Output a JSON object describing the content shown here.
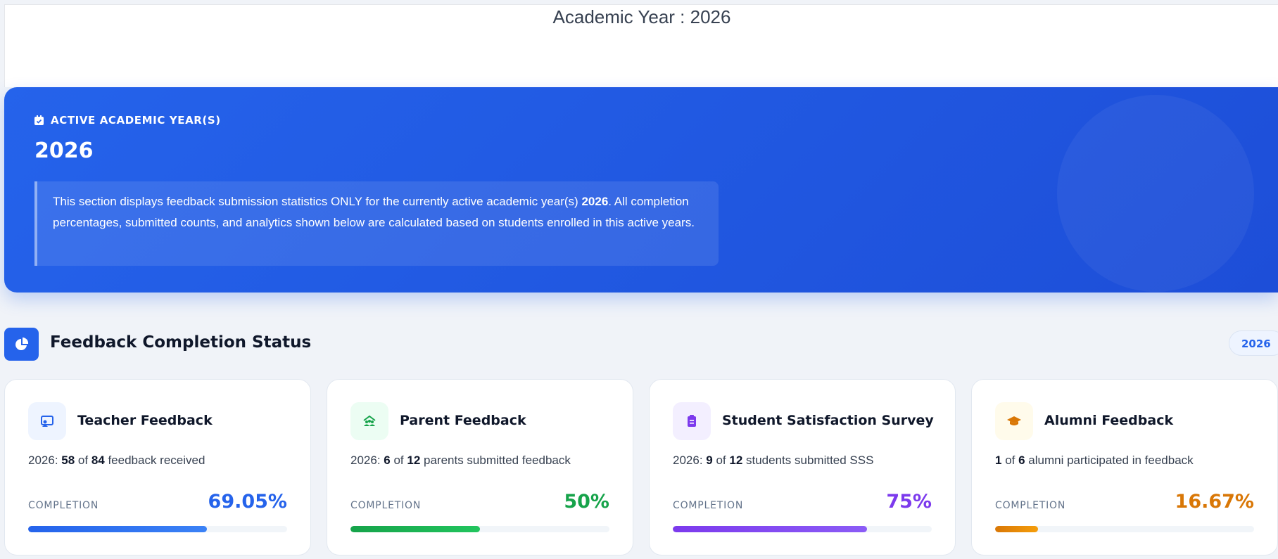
{
  "header": {
    "title": "Academic Year : 2026"
  },
  "banner": {
    "label": "ACTIVE ACADEMIC YEAR(S)",
    "year": "2026",
    "description": [
      {
        "text": "This section displays feedback submission statistics ONLY for the currently active academic year(s) "
      },
      {
        "text": "2026",
        "bold": true
      },
      {
        "text": ". All completion percentages, submitted counts, and analytics shown below are calculated based on students enrolled in this active years."
      }
    ]
  },
  "section": {
    "title": "Feedback Completion Status",
    "badge": "2026"
  },
  "cards": [
    {
      "title": "Teacher Feedback",
      "color": "#2563eb",
      "icon_bg": "#eef4ff",
      "bar": [
        "#2563eb",
        "#3b82f6"
      ],
      "stat": [
        {
          "text": "2026: "
        },
        {
          "text": "58",
          "bold": true
        },
        {
          "text": " of "
        },
        {
          "text": "84",
          "bold": true
        },
        {
          "text": " feedback received"
        }
      ],
      "completion_label": "COMPLETION",
      "completion": {
        "value": 69.05,
        "label": "69.05%"
      }
    },
    {
      "title": "Parent Feedback",
      "color": "#16a34a",
      "icon_bg": "#ecfdf3",
      "bar": [
        "#16a34a",
        "#22c55e"
      ],
      "stat": [
        {
          "text": "2026: "
        },
        {
          "text": "6",
          "bold": true
        },
        {
          "text": " of "
        },
        {
          "text": "12",
          "bold": true
        },
        {
          "text": " parents submitted feedback"
        }
      ],
      "completion_label": "COMPLETION",
      "completion": {
        "value": 50,
        "label": "50%"
      }
    },
    {
      "title": "Student Satisfaction Survey",
      "color": "#7c3aed",
      "icon_bg": "#f3efff",
      "bar": [
        "#7c3aed",
        "#8b5cf6"
      ],
      "stat": [
        {
          "text": "2026: "
        },
        {
          "text": "9",
          "bold": true
        },
        {
          "text": " of "
        },
        {
          "text": "12",
          "bold": true
        },
        {
          "text": " students submitted SSS"
        }
      ],
      "completion_label": "COMPLETION",
      "completion": {
        "value": 75,
        "label": "75%"
      }
    },
    {
      "title": "Alumni Feedback",
      "color": "#d97706",
      "icon_bg": "#fffbeb",
      "bar": [
        "#d97706",
        "#f59e0b"
      ],
      "stat": [
        {
          "text": "1",
          "bold": true
        },
        {
          "text": " of "
        },
        {
          "text": "6",
          "bold": true
        },
        {
          "text": " alumni participated in feedback"
        }
      ],
      "completion_label": "COMPLETION",
      "completion": {
        "value": 16.67,
        "label": "16.67%"
      }
    }
  ]
}
